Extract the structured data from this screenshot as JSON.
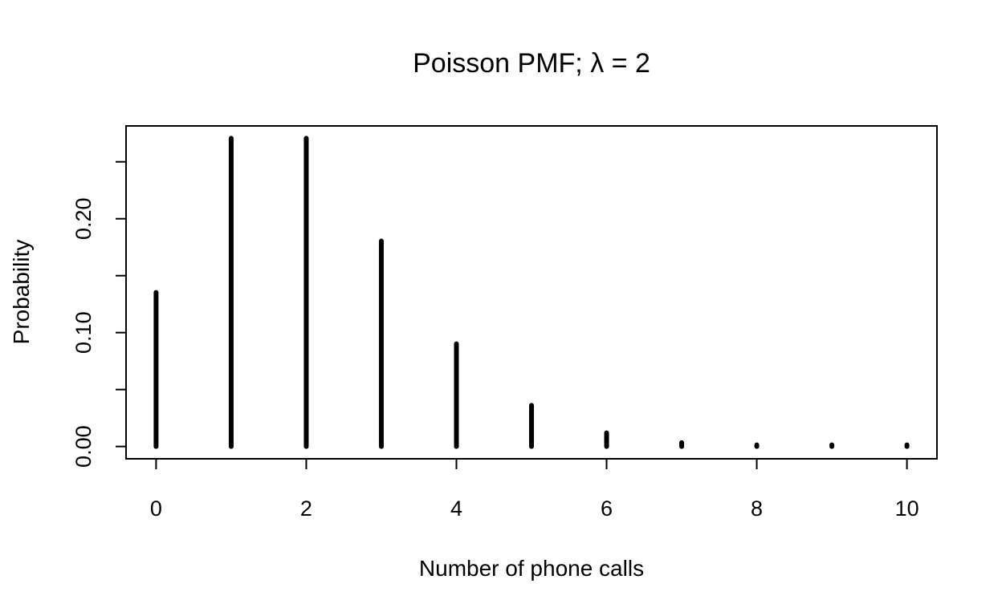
{
  "chart_data": {
    "type": "bar",
    "title": "Poisson PMF; λ = 2",
    "xlabel": "Number of phone calls",
    "ylabel": "Probability",
    "x": [
      0,
      1,
      2,
      3,
      4,
      5,
      6,
      7,
      8,
      9,
      10
    ],
    "values": [
      0.1353,
      0.2707,
      0.2707,
      0.1804,
      0.0902,
      0.0361,
      0.012,
      0.0034,
      0.0009,
      0.0002,
      4e-05
    ],
    "xlim": [
      -0.4,
      10.4
    ],
    "ylim": [
      -0.0108,
      0.2815
    ],
    "x_ticks": [
      {
        "value": 0,
        "label": "0"
      },
      {
        "value": 2,
        "label": "2"
      },
      {
        "value": 4,
        "label": "4"
      },
      {
        "value": 6,
        "label": "6"
      },
      {
        "value": 8,
        "label": "8"
      },
      {
        "value": 10,
        "label": "10"
      }
    ],
    "y_ticks": [
      {
        "value": 0.0,
        "label": "0.00"
      },
      {
        "value": 0.05,
        "label": ""
      },
      {
        "value": 0.1,
        "label": "0.10"
      },
      {
        "value": 0.15,
        "label": ""
      },
      {
        "value": 0.2,
        "label": "0.20"
      },
      {
        "value": 0.25,
        "label": ""
      }
    ],
    "grid": false,
    "legend": "none",
    "bar_color": "#000000"
  }
}
